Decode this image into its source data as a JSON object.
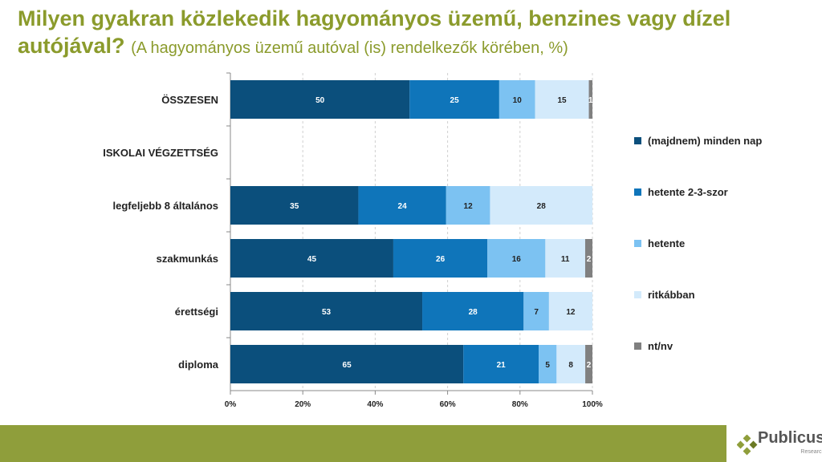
{
  "title": {
    "main": "Milyen gyakran közlekedik hagyományos üzemű, benzines vagy dízel autójával?",
    "sub": "(A hagyományos üzemű autóval (is) rendelkezők körében, %)"
  },
  "chart_data": {
    "type": "bar",
    "orientation": "horizontal",
    "stacked": true,
    "normalized": true,
    "categories": [
      "ÖSSZESEN",
      "ISKOLAI VÉGZETTSÉG",
      "legfeljebb 8 általános",
      "szakmunkás",
      "érettségi",
      "diploma"
    ],
    "series": [
      {
        "name": "(majdnem) minden nap",
        "color": "#0b4f7c",
        "values": [
          50,
          null,
          35,
          45,
          53,
          65
        ]
      },
      {
        "name": "hetente 2-3-szor",
        "color": "#0f75ba",
        "values": [
          25,
          null,
          24,
          26,
          28,
          21
        ]
      },
      {
        "name": "hetente",
        "color": "#7cc2f2",
        "values": [
          10,
          null,
          12,
          16,
          7,
          5
        ]
      },
      {
        "name": "ritkábban",
        "color": "#d3eafb",
        "values": [
          15,
          null,
          28,
          11,
          12,
          8
        ]
      },
      {
        "name": "nt/nv",
        "color": "#808080",
        "values": [
          1,
          null,
          0,
          2,
          0,
          2
        ]
      }
    ],
    "xticks": [
      "0%",
      "20%",
      "40%",
      "60%",
      "80%",
      "100%"
    ],
    "xlim": [
      0,
      100
    ],
    "legend": "right",
    "grid": true
  },
  "footer": {
    "logo": "Publicus",
    "logo_sub": "Research"
  }
}
